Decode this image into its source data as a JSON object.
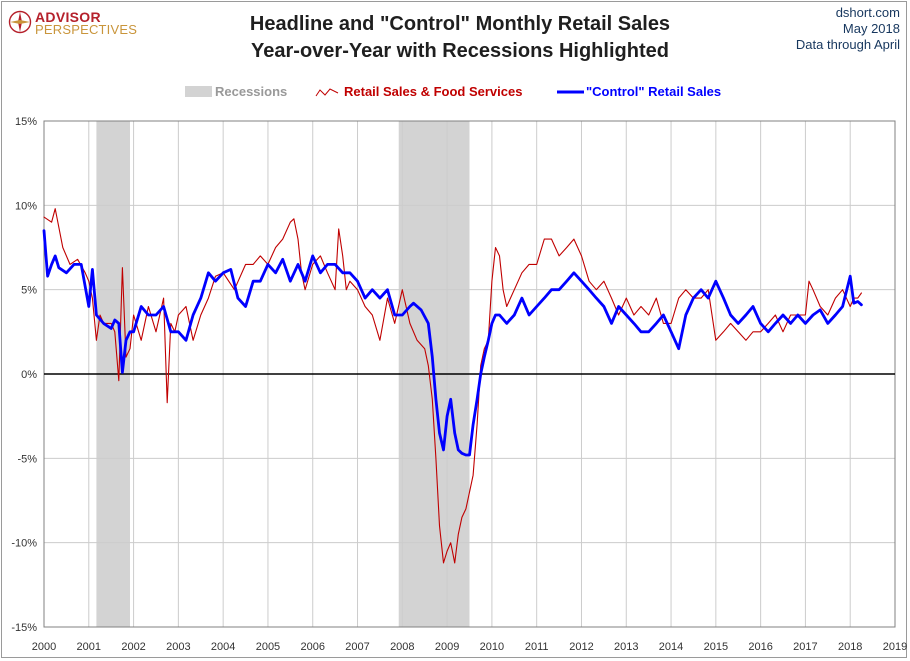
{
  "logo": {
    "line1": "ADVISOR",
    "line2": "PERSPECTIVES"
  },
  "title": {
    "line1": "Headline and \"Control\" Monthly Retail Sales",
    "line2": "Year-over-Year  with Recessions Highlighted"
  },
  "source": {
    "site": "dshort.com",
    "date": "May 2018",
    "note": "Data through April"
  },
  "colors": {
    "recession": "#d3d3d3",
    "headline": "#c00000",
    "control": "#0000ff",
    "zero_line": "#000000",
    "grid": "#cccccc",
    "title": "#1f1f1f",
    "source": "#17375e"
  },
  "chart_data": {
    "type": "line",
    "title": "Headline and \"Control\" Monthly Retail Sales Year-over-Year  with Recessions Highlighted",
    "xlim": [
      2000,
      2019
    ],
    "ylim": [
      -15,
      15
    ],
    "x_ticks": [
      "2000",
      "2001",
      "2002",
      "2003",
      "2004",
      "2005",
      "2006",
      "2007",
      "2008",
      "2009",
      "2010",
      "2011",
      "2012",
      "2013",
      "2014",
      "2015",
      "2016",
      "2017",
      "2018",
      "2019"
    ],
    "y_ticks": [
      "15%",
      "10%",
      "5%",
      "0%",
      "-5%",
      "-10%",
      "-15%"
    ],
    "y_tick_values": [
      15,
      10,
      5,
      0,
      -5,
      -10,
      -15
    ],
    "grid": true,
    "legend": {
      "position": "top-center",
      "entries": [
        "Recessions",
        "Retail Sales & Food Services",
        "\"Control\" Retail Sales"
      ]
    },
    "recessions": [
      {
        "start": 2001.17,
        "end": 2001.92
      },
      {
        "start": 2007.92,
        "end": 2009.5
      }
    ],
    "series": [
      {
        "name": "Retail Sales & Food Services",
        "x": [
          2000.0,
          2000.17,
          2000.25,
          2000.42,
          2000.58,
          2000.75,
          2000.92,
          2001.0,
          2001.08,
          2001.17,
          2001.25,
          2001.33,
          2001.42,
          2001.5,
          2001.58,
          2001.67,
          2001.75,
          2001.83,
          2001.92,
          2002.0,
          2002.17,
          2002.33,
          2002.5,
          2002.67,
          2002.75,
          2002.83,
          2002.92,
          2003.0,
          2003.17,
          2003.33,
          2003.5,
          2003.67,
          2003.83,
          2004.0,
          2004.25,
          2004.5,
          2004.67,
          2004.83,
          2005.0,
          2005.17,
          2005.33,
          2005.5,
          2005.58,
          2005.67,
          2005.75,
          2005.83,
          2006.0,
          2006.17,
          2006.33,
          2006.5,
          2006.58,
          2006.67,
          2006.75,
          2006.83,
          2007.0,
          2007.17,
          2007.33,
          2007.5,
          2007.67,
          2007.83,
          2008.0,
          2008.17,
          2008.33,
          2008.5,
          2008.58,
          2008.67,
          2008.75,
          2008.83,
          2008.92,
          2009.0,
          2009.08,
          2009.17,
          2009.25,
          2009.33,
          2009.42,
          2009.5,
          2009.58,
          2009.67,
          2009.75,
          2009.83,
          2009.92,
          2010.0,
          2010.08,
          2010.17,
          2010.25,
          2010.33,
          2010.5,
          2010.67,
          2010.83,
          2011.0,
          2011.17,
          2011.33,
          2011.5,
          2011.67,
          2011.83,
          2012.0,
          2012.17,
          2012.33,
          2012.5,
          2012.67,
          2012.83,
          2013.0,
          2013.17,
          2013.33,
          2013.5,
          2013.67,
          2013.83,
          2014.0,
          2014.17,
          2014.33,
          2014.5,
          2014.67,
          2014.83,
          2015.0,
          2015.17,
          2015.33,
          2015.5,
          2015.67,
          2015.83,
          2016.0,
          2016.17,
          2016.33,
          2016.5,
          2016.67,
          2016.83,
          2017.0,
          2017.08,
          2017.17,
          2017.33,
          2017.5,
          2017.67,
          2017.83,
          2018.0,
          2018.08,
          2018.17,
          2018.25
        ],
        "values": [
          9.3,
          9.0,
          9.8,
          7.5,
          6.5,
          6.8,
          6.0,
          5.5,
          4.5,
          2.0,
          3.5,
          3.0,
          3.0,
          3.0,
          2.5,
          -0.4,
          6.3,
          1.0,
          1.5,
          3.5,
          2.0,
          4.0,
          2.5,
          4.5,
          -1.7,
          3.0,
          2.5,
          3.5,
          4.0,
          2.0,
          3.5,
          4.5,
          5.8,
          6.0,
          5.0,
          6.5,
          6.5,
          7.0,
          6.5,
          7.5,
          8.0,
          9.0,
          9.2,
          8.0,
          6.0,
          5.0,
          6.5,
          7.0,
          6.0,
          5.0,
          8.6,
          7.0,
          5.0,
          5.5,
          5.0,
          4.0,
          3.5,
          2.0,
          4.5,
          3.0,
          5.0,
          3.0,
          2.0,
          1.5,
          0.5,
          -1.5,
          -5.0,
          -9.0,
          -11.2,
          -10.5,
          -10.0,
          -11.2,
          -9.5,
          -8.5,
          -8.0,
          -7.0,
          -6.0,
          -3.0,
          0.5,
          1.5,
          2.0,
          5.5,
          7.5,
          7.0,
          5.0,
          4.0,
          5.0,
          6.0,
          6.5,
          6.5,
          8.0,
          8.0,
          7.0,
          7.5,
          8.0,
          7.0,
          5.5,
          5.0,
          5.5,
          4.5,
          3.5,
          4.5,
          3.5,
          4.0,
          3.5,
          4.5,
          3.0,
          3.0,
          4.5,
          5.0,
          4.5,
          4.5,
          5.0,
          2.0,
          2.5,
          3.0,
          2.5,
          2.0,
          2.5,
          2.5,
          3.0,
          3.5,
          2.5,
          3.5,
          3.5,
          3.5,
          5.5,
          5.0,
          4.0,
          3.5,
          4.5,
          5.0,
          4.0,
          4.5,
          4.5,
          4.8
        ]
      },
      {
        "name": "\"Control\" Retail Sales",
        "x": [
          2000.0,
          2000.08,
          2000.17,
          2000.25,
          2000.33,
          2000.5,
          2000.67,
          2000.83,
          2001.0,
          2001.08,
          2001.17,
          2001.33,
          2001.5,
          2001.58,
          2001.67,
          2001.75,
          2001.83,
          2001.92,
          2002.0,
          2002.17,
          2002.33,
          2002.5,
          2002.67,
          2002.83,
          2003.0,
          2003.17,
          2003.33,
          2003.5,
          2003.67,
          2003.83,
          2004.0,
          2004.17,
          2004.33,
          2004.5,
          2004.67,
          2004.83,
          2005.0,
          2005.17,
          2005.33,
          2005.5,
          2005.67,
          2005.83,
          2006.0,
          2006.17,
          2006.33,
          2006.5,
          2006.67,
          2006.83,
          2007.0,
          2007.17,
          2007.33,
          2007.5,
          2007.67,
          2007.83,
          2008.0,
          2008.17,
          2008.25,
          2008.42,
          2008.58,
          2008.67,
          2008.75,
          2008.83,
          2008.92,
          2009.0,
          2009.08,
          2009.17,
          2009.25,
          2009.33,
          2009.42,
          2009.5,
          2009.58,
          2009.67,
          2009.75,
          2009.83,
          2009.92,
          2010.0,
          2010.08,
          2010.17,
          2010.33,
          2010.5,
          2010.67,
          2010.83,
          2011.0,
          2011.17,
          2011.33,
          2011.5,
          2011.67,
          2011.83,
          2012.0,
          2012.17,
          2012.33,
          2012.5,
          2012.67,
          2012.83,
          2013.0,
          2013.17,
          2013.33,
          2013.5,
          2013.67,
          2013.83,
          2014.0,
          2014.17,
          2014.33,
          2014.5,
          2014.67,
          2014.83,
          2015.0,
          2015.17,
          2015.33,
          2015.5,
          2015.67,
          2015.83,
          2016.0,
          2016.17,
          2016.33,
          2016.5,
          2016.67,
          2016.83,
          2017.0,
          2017.17,
          2017.33,
          2017.5,
          2017.67,
          2017.83,
          2018.0,
          2018.08,
          2018.17,
          2018.25
        ],
        "values": [
          8.5,
          5.8,
          6.5,
          7.0,
          6.3,
          6.0,
          6.5,
          6.5,
          4.0,
          6.2,
          3.5,
          3.0,
          2.7,
          3.2,
          3.0,
          0.1,
          2.0,
          2.5,
          2.5,
          4.0,
          3.5,
          3.5,
          4.0,
          2.5,
          2.5,
          2.0,
          3.5,
          4.5,
          6.0,
          5.5,
          6.0,
          6.2,
          4.5,
          4.0,
          5.5,
          5.5,
          6.5,
          6.0,
          6.8,
          5.5,
          6.5,
          5.5,
          7.0,
          6.0,
          6.5,
          6.5,
          6.0,
          6.0,
          5.5,
          4.5,
          5.0,
          4.5,
          5.0,
          3.5,
          3.5,
          4.0,
          4.2,
          3.8,
          3.0,
          1.0,
          -1.5,
          -3.5,
          -4.5,
          -2.5,
          -1.5,
          -3.5,
          -4.5,
          -4.7,
          -4.8,
          -4.8,
          -3.0,
          -1.5,
          0.0,
          1.0,
          2.0,
          3.0,
          3.5,
          3.5,
          3.0,
          3.5,
          4.5,
          3.5,
          4.0,
          4.5,
          5.0,
          5.0,
          5.5,
          6.0,
          5.5,
          5.0,
          4.5,
          4.0,
          3.0,
          4.0,
          3.5,
          3.0,
          2.5,
          2.5,
          3.0,
          3.5,
          2.5,
          1.5,
          3.5,
          4.5,
          5.0,
          4.5,
          5.5,
          4.5,
          3.5,
          3.0,
          3.5,
          4.0,
          3.0,
          2.5,
          3.0,
          3.5,
          3.0,
          3.5,
          3.0,
          3.5,
          3.8,
          3.0,
          3.5,
          4.0,
          5.8,
          4.2,
          4.3,
          4.1
        ]
      }
    ]
  }
}
